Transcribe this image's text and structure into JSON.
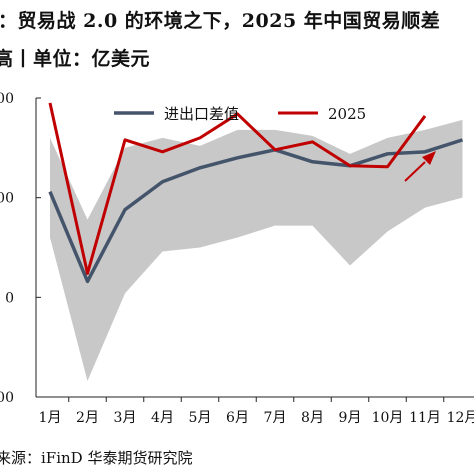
{
  "title": {
    "line1": "：贸易战 2.0 的环境之下，2025 年中国贸易顺差",
    "line2": "高丨单位：亿美元"
  },
  "source": "来源：iFinD  华泰期货研究院",
  "chart_data": {
    "type": "line",
    "categories": [
      "1月",
      "2月",
      "3月",
      "4月",
      "5月",
      "6月",
      "7月",
      "8月",
      "9月",
      "10月",
      "11月",
      "12月"
    ],
    "ytick_labels": [
      "00",
      "00",
      "0",
      "00"
    ],
    "ylim": [
      0,
      1500
    ],
    "grid": false,
    "legend_position": "top",
    "series": [
      {
        "name": "进出口差值",
        "color": "#44546a",
        "values": [
          1030,
          580,
          940,
          1080,
          1150,
          1200,
          1240,
          1180,
          1160,
          1220,
          1230,
          1290
        ]
      },
      {
        "name": "2025",
        "color": "#c00000",
        "values": [
          1475,
          620,
          1290,
          1230,
          1300,
          1420,
          1240,
          1280,
          1160,
          1155,
          1410,
          null
        ]
      }
    ],
    "range_band": {
      "color": "#c8c8c8",
      "upper": [
        1300,
        890,
        1250,
        1300,
        1260,
        1340,
        1340,
        1310,
        1220,
        1300,
        1340,
        1390
      ],
      "lower": [
        800,
        80,
        520,
        730,
        750,
        800,
        860,
        860,
        660,
        830,
        950,
        1000
      ]
    },
    "arrow_color": "#c00000"
  }
}
